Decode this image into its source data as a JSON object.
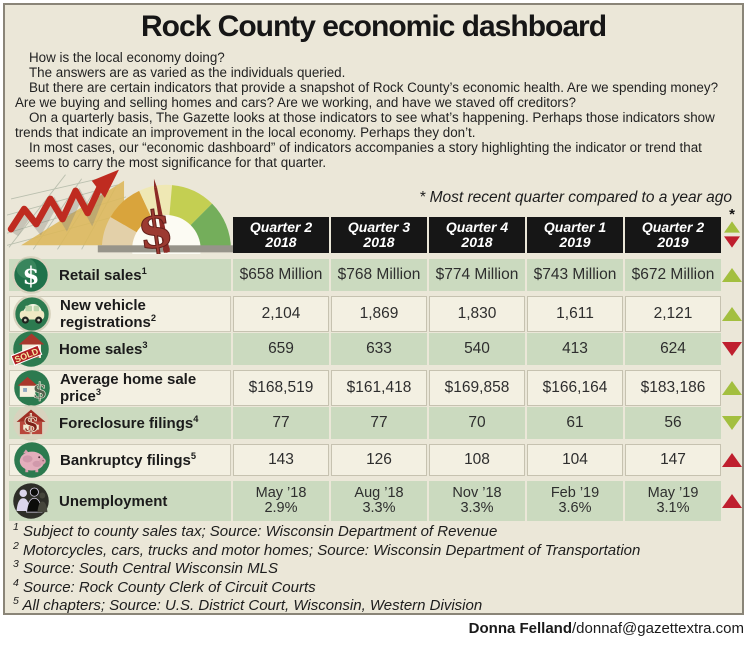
{
  "page": {
    "title": "Rock County economic dashboard",
    "intro_paragraphs": [
      "How is the local economy doing?",
      "The answers are as varied as the individuals queried.",
      "But there are certain indicators that provide a snapshot of Rock County’s economic health. Are we spending money? Are we buying and selling homes and cars? Are we working, and have we staved off creditors?",
      "On a quarterly basis, The Gazette looks at those indicators to see what’s happening. Perhaps those indicators show trends that indicate an improvement in the local economy. Perhaps they don’t.",
      "In most cases, our “economic dashboard” of indicators accompanies a story highlighting the indicator or trend that seems to carry the most significance for that quarter."
    ],
    "note": "* Most recent quarter compared to a year ago",
    "credit_name": "Donna Felland",
    "credit_contact": "/donnaf@gazettextra.com"
  },
  "table": {
    "trend_column_symbol": "*",
    "quarter_columns": [
      {
        "line1": "Quarter 2",
        "line2": "2018"
      },
      {
        "line1": "Quarter 3",
        "line2": "2018"
      },
      {
        "line1": "Quarter 4",
        "line2": "2018"
      },
      {
        "line1": "Quarter 1",
        "line2": "2019"
      },
      {
        "line1": "Quarter 2",
        "line2": "2019"
      }
    ],
    "rows": [
      {
        "icon": "dollar-coin-icon",
        "label": "Retail sales",
        "footnote_ref": "1",
        "shade": "green",
        "trend": "up",
        "trend_color": "green",
        "values": [
          "$658 Million",
          "$768 Million",
          "$774 Million",
          "$743 Million",
          "$672 Million"
        ]
      },
      {
        "icon": "car-icon",
        "label": "New vehicle registrations",
        "footnote_ref": "2",
        "shade": "cream",
        "trend": "up",
        "trend_color": "green",
        "values": [
          "2,104",
          "1,869",
          "1,830",
          "1,611",
          "2,121"
        ]
      },
      {
        "icon": "sold-house-icon",
        "label": "Home sales",
        "footnote_ref": "3",
        "shade": "green",
        "trend": "down",
        "trend_color": "red",
        "values": [
          "659",
          "633",
          "540",
          "413",
          "624"
        ]
      },
      {
        "icon": "house-dollar-icon",
        "label": "Average home sale price",
        "footnote_ref": "3",
        "shade": "cream",
        "trend": "up",
        "trend_color": "green",
        "values": [
          "$168,519",
          "$161,418",
          "$169,858",
          "$166,164",
          "$183,186"
        ]
      },
      {
        "icon": "foreclosure-house-icon",
        "label": "Foreclosure filings",
        "footnote_ref": "4",
        "shade": "green",
        "trend": "down",
        "trend_color": "green",
        "values": [
          "77",
          "77",
          "70",
          "61",
          "56"
        ]
      },
      {
        "icon": "piggy-bank-icon",
        "label": "Bankruptcy filings",
        "footnote_ref": "5",
        "shade": "cream",
        "trend": "up",
        "trend_color": "red",
        "values": [
          "143",
          "126",
          "108",
          "104",
          "147"
        ]
      },
      {
        "icon": "workers-icon",
        "label": "Unemployment",
        "footnote_ref": "",
        "shade": "green",
        "trend": "up",
        "trend_color": "red",
        "tall": true,
        "values_two_line": [
          {
            "top": "May ’18",
            "bottom": "2.9%"
          },
          {
            "top": "Aug ’18",
            "bottom": "3.3%"
          },
          {
            "top": "Nov ’18",
            "bottom": "3.3%"
          },
          {
            "top": "Feb ’19",
            "bottom": "3.6%"
          },
          {
            "top": "May ’19",
            "bottom": "3.1%"
          }
        ]
      }
    ]
  },
  "footnotes": [
    {
      "marker": "1",
      "text": "Subject to county sales tax; Source: Wisconsin Department of Revenue"
    },
    {
      "marker": "2",
      "text": "Motorcycles, cars, trucks and motor homes; Source: Wisconsin Department of Transportation"
    },
    {
      "marker": "3",
      "text": "Source: South Central Wisconsin MLS"
    },
    {
      "marker": "4",
      "text": "Source: Rock County Clerk of Circuit Courts"
    },
    {
      "marker": "5",
      "text": "All chapters; Source: U.S. District Court, Wisconsin, Western Division"
    }
  ],
  "colors": {
    "background": "#ebe7d8",
    "green_cell": "#cbdabf",
    "cream_cell": "#f3f0e2",
    "header_bg": "#161616",
    "trend_green": "#a3bf3f",
    "trend_red": "#bf1f2e"
  },
  "chart_data": {
    "type": "table",
    "title": "Rock County economic dashboard",
    "note": "* Most recent quarter compared to a year ago",
    "columns": [
      "Quarter 2 2018",
      "Quarter 3 2018",
      "Quarter 4 2018",
      "Quarter 1 2019",
      "Quarter 2 2019",
      "trend vs year ago"
    ],
    "rows": [
      {
        "indicator": "Retail sales",
        "values": [
          "$658 Million",
          "$768 Million",
          "$774 Million",
          "$743 Million",
          "$672 Million"
        ],
        "trend": "up-green"
      },
      {
        "indicator": "New vehicle registrations",
        "values": [
          "2,104",
          "1,869",
          "1,830",
          "1,611",
          "2,121"
        ],
        "trend": "up-green"
      },
      {
        "indicator": "Home sales",
        "values": [
          "659",
          "633",
          "540",
          "413",
          "624"
        ],
        "trend": "down-red"
      },
      {
        "indicator": "Average home sale price",
        "values": [
          "$168,519",
          "$161,418",
          "$169,858",
          "$166,164",
          "$183,186"
        ],
        "trend": "up-green"
      },
      {
        "indicator": "Foreclosure filings",
        "values": [
          "77",
          "77",
          "70",
          "61",
          "56"
        ],
        "trend": "down-green"
      },
      {
        "indicator": "Bankruptcy filings",
        "values": [
          "143",
          "126",
          "108",
          "104",
          "147"
        ],
        "trend": "up-red"
      },
      {
        "indicator": "Unemployment",
        "values": [
          "May '18 2.9%",
          "Aug '18 3.3%",
          "Nov '18 3.3%",
          "Feb '19 3.6%",
          "May '19 3.1%"
        ],
        "trend": "up-red"
      }
    ]
  }
}
